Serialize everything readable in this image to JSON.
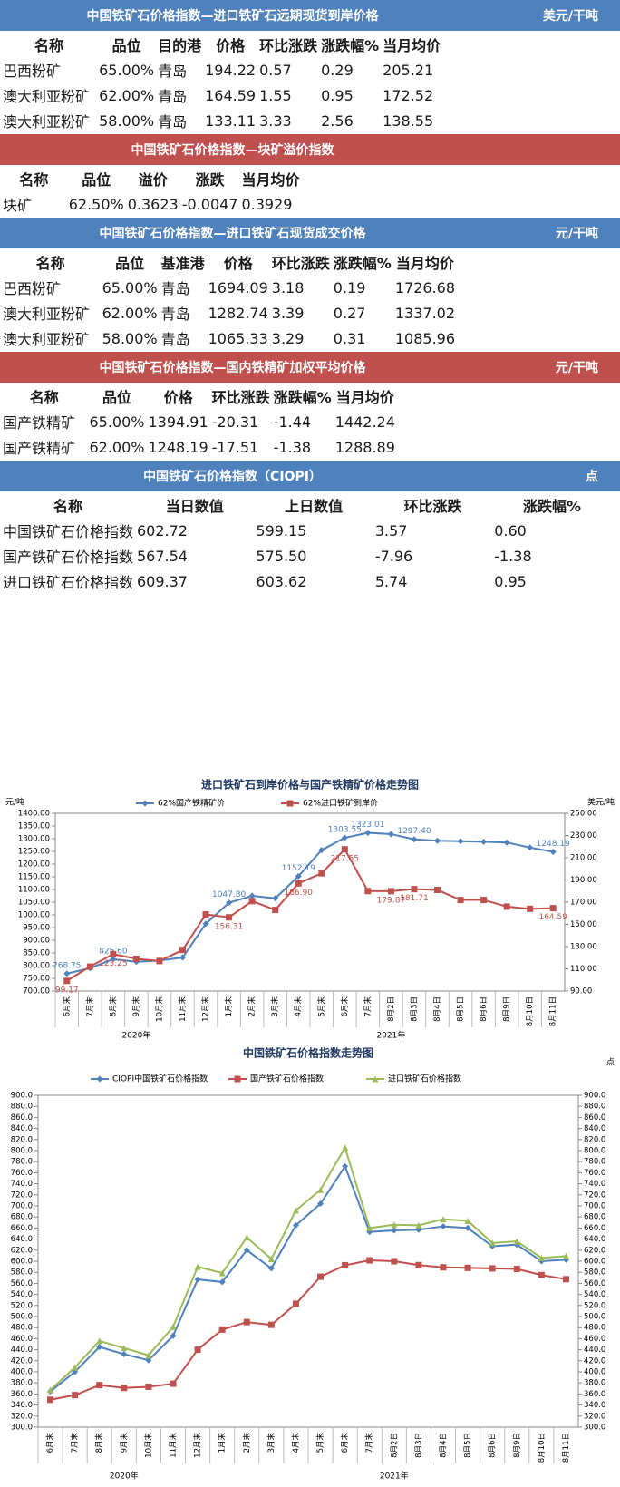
{
  "tables": [
    {
      "title": "中国铁矿石价格指数—进口铁矿石远期现货到岸价格",
      "unit": "美元/干吨",
      "color": "#4f81bd",
      "headers": [
        "名称",
        "品位",
        "目的港",
        "价格",
        "环比涨跌",
        "涨跌幅%",
        "当月均价"
      ],
      "rows": [
        [
          "巴西粉矿",
          "65.00%",
          "青岛",
          "194.22",
          "0.57",
          "0.29",
          "205.21"
        ],
        [
          "澳大利亚粉矿",
          "62.00%",
          "青岛",
          "164.59",
          "1.55",
          "0.95",
          "172.52"
        ],
        [
          "澳大利亚粉矿",
          "58.00%",
          "青岛",
          "133.11",
          "3.33",
          "2.56",
          "138.55"
        ]
      ]
    },
    {
      "title": "中国铁矿石价格指数—块矿溢价指数",
      "color": "#c0504d",
      "headers": [
        "名称",
        "品位",
        "溢价",
        "涨跌",
        "当月均价"
      ],
      "rows": [
        [
          "块矿",
          "62.50%",
          "0.3623",
          "-0.0047",
          "0.3929"
        ]
      ]
    },
    {
      "title": "中国铁矿石价格指数—进口铁矿石现货成交价格",
      "unit": "元/干吨",
      "color": "#4f81bd",
      "headers": [
        "名称",
        "品位",
        "基准港",
        "价格",
        "环比涨跌",
        "涨跌幅%",
        "当月均价"
      ],
      "rows": [
        [
          "巴西粉矿",
          "65.00%",
          "青岛",
          "1694.09",
          "3.18",
          "0.19",
          "1726.68"
        ],
        [
          "澳大利亚粉矿",
          "62.00%",
          "青岛",
          "1282.74",
          "3.39",
          "0.27",
          "1337.02"
        ],
        [
          "澳大利亚粉矿",
          "58.00%",
          "青岛",
          "1065.33",
          "3.29",
          "0.31",
          "1085.96"
        ]
      ]
    },
    {
      "title": "中国铁矿石价格指数—国内铁精矿加权平均价格",
      "unit": "元/干吨",
      "color": "#c0504d",
      "headers": [
        "名称",
        "品位",
        "价格",
        "环比涨跌",
        "涨跌幅%",
        "当月均价"
      ],
      "rows": [
        [
          "国产铁精矿",
          "65.00%",
          "1394.91",
          "-20.31",
          "-1.44",
          "1442.24"
        ],
        [
          "国产铁精矿",
          "62.00%",
          "1248.19",
          "-17.51",
          "-1.38",
          "1288.89"
        ]
      ]
    },
    {
      "title": "中国铁矿石价格指数（CIOPI）",
      "unit": "点",
      "color": "#4f81bd",
      "headers": [
        "名称",
        "当日数值",
        "上日数值",
        "环比涨跌",
        "涨跌幅%"
      ],
      "rows": [
        [
          "中国铁矿石价格指数",
          "602.72",
          "599.15",
          "3.57",
          "0.60"
        ],
        [
          "国产铁矿石价格指数",
          "567.54",
          "575.50",
          "-7.96",
          "-1.38"
        ],
        [
          "进口铁矿石价格指数",
          "609.37",
          "603.62",
          "5.74",
          "0.95"
        ]
      ]
    }
  ],
  "chart_data": [
    {
      "type": "line",
      "title": "进口铁矿石到岸价格与国产铁精矿价格走势图",
      "y_label": "元/吨",
      "y2_label": "美元/吨",
      "category_groups": [
        {
          "label": "2020年",
          "categories": [
            "6月末",
            "7月末",
            "8月末",
            "9月末",
            "10月末",
            "11月末",
            "12月末"
          ]
        },
        {
          "label": "2021年",
          "categories": [
            "1月末",
            "2月末",
            "3月末",
            "4月末",
            "5月末",
            "6月末",
            "7月末",
            "8月2日",
            "8月3日",
            "8月4日",
            "8月5日",
            "8月6日",
            "8月9日",
            "8月10日",
            "8月11日"
          ]
        }
      ],
      "series": [
        {
          "name": "62%国产铁精矿价",
          "color": "#4f81bd",
          "marker": "diamond",
          "label_side": "above",
          "values": [
            768.75,
            790,
            825.6,
            815,
            820,
            832,
            965,
            1047.8,
            1075,
            1065,
            1152.19,
            1255,
            1303.55,
            1323.01,
            1318,
            1297.4,
            1292,
            1290,
            1288,
            1285,
            1265,
            1248.19
          ],
          "value_labels": [
            "768.75",
            null,
            "825.60",
            null,
            null,
            null,
            null,
            "1047.80",
            null,
            null,
            "1152.19",
            null,
            "1303.55",
            "1323.01",
            null,
            "1297.40",
            null,
            null,
            null,
            null,
            null,
            "1248.19"
          ]
        },
        {
          "name": "62%进口铁矿到岸价",
          "color": "#c0504d",
          "marker": "square",
          "label_side": "below",
          "axis": "y2",
          "values": [
            99.17,
            112,
            123.25,
            119,
            117,
            127,
            159,
            156.31,
            171,
            163,
            186.9,
            196,
            217.55,
            180,
            179.87,
            181.71,
            181,
            172,
            172,
            166,
            164,
            164.59
          ],
          "value_labels": [
            "99.17",
            null,
            "123.25",
            null,
            null,
            null,
            null,
            "156.31",
            null,
            null,
            "186.90",
            null,
            "217.55",
            null,
            "179.87",
            "181.71",
            null,
            null,
            null,
            null,
            null,
            "164.59"
          ]
        }
      ],
      "ylim": [
        700,
        1400
      ],
      "yticks": [
        {
          "value": 700,
          "label": "700.00"
        },
        {
          "value": 750,
          "label": "750.00"
        },
        {
          "value": 800,
          "label": "800.00"
        },
        {
          "value": 850,
          "label": "850.00"
        },
        {
          "value": 900,
          "label": "900.00"
        },
        {
          "value": 950,
          "label": "950.00"
        },
        {
          "value": 1000,
          "label": "1000.00"
        },
        {
          "value": 1050,
          "label": "1050.00"
        },
        {
          "value": 1100,
          "label": "1100.00"
        },
        {
          "value": 1150,
          "label": "1150.00"
        },
        {
          "value": 1200,
          "label": "1200.00"
        },
        {
          "value": 1250,
          "label": "1250.00"
        },
        {
          "value": 1300,
          "label": "1300.00"
        },
        {
          "value": 1350,
          "label": "1350.00"
        },
        {
          "value": 1400,
          "label": "1400.00"
        }
      ],
      "y2lim": [
        90,
        250
      ],
      "y2ticks": [
        {
          "value": 90,
          "label": "90.00"
        },
        {
          "value": 110,
          "label": "110.00"
        },
        {
          "value": 130,
          "label": "130.00"
        },
        {
          "value": 150,
          "label": "150.00"
        },
        {
          "value": 170,
          "label": "170.00"
        },
        {
          "value": 190,
          "label": "190.00"
        },
        {
          "value": 210,
          "label": "210.00"
        },
        {
          "value": 230,
          "label": "230.00"
        },
        {
          "value": 250,
          "label": "250.00"
        }
      ]
    },
    {
      "type": "line",
      "title": "中国铁矿石价格指数走势图",
      "y2_label": "点",
      "category_groups": [
        {
          "label": "2020年",
          "categories": [
            "6月末",
            "7月末",
            "8月末",
            "9月末",
            "10月末",
            "11月末",
            "12月末"
          ]
        },
        {
          "label": "2021年",
          "categories": [
            "1月末",
            "2月末",
            "3月末",
            "4月末",
            "5月末",
            "6月末",
            "7月末",
            "8月2日",
            "8月3日",
            "8月4日",
            "8月5日",
            "8月6日",
            "8月9日",
            "8月10日",
            "8月11日"
          ]
        }
      ],
      "series": [
        {
          "name": "CIOPI中国铁矿石价格指数",
          "color": "#4f81bd",
          "marker": "diamond",
          "label_side": "below",
          "values": [
            364.49,
            400,
            445,
            432,
            421,
            465.15,
            567,
            562.45,
            620,
            587,
            665,
            704.04,
            771.62,
            653,
            655.69,
            657,
            663,
            660,
            627,
            630,
            600,
            602.72
          ],
          "value_labels": [
            null,
            null,
            null,
            null,
            null,
            null,
            null,
            null,
            null,
            null,
            null,
            null,
            null,
            null,
            null,
            null,
            null,
            null,
            null,
            null,
            null,
            null
          ]
        },
        {
          "name": "国产铁矿石价格指数",
          "color": "#c0504d",
          "marker": "square",
          "label_side": "above",
          "values": [
            349.55,
            358,
            376,
            371,
            373,
            378.56,
            440,
            476.42,
            490,
            485,
            523,
            572,
            592.71,
            601.56,
            600,
            593,
            589,
            588,
            587,
            586,
            575,
            567.54
          ],
          "value_labels": [
            null,
            null,
            null,
            null,
            null,
            null,
            null,
            null,
            null,
            null,
            null,
            null,
            null,
            null,
            null,
            null,
            null,
            null,
            null,
            null,
            null,
            null
          ]
        },
        {
          "name": "进口铁矿石价格指数",
          "color": "#9bbb59",
          "marker": "triangle",
          "label_side": "above",
          "values": [
            367.18,
            408,
            456,
            443,
            430,
            481.53,
            590,
            578.77,
            643,
            604,
            692,
            729.07,
            805.44,
            660,
            665.92,
            665,
            676,
            673,
            633,
            636,
            606,
            609.37
          ],
          "value_labels": [
            null,
            null,
            null,
            null,
            null,
            null,
            null,
            null,
            null,
            null,
            null,
            null,
            null,
            null,
            null,
            null,
            null,
            null,
            null,
            null,
            null,
            null
          ]
        }
      ],
      "ylim": [
        300,
        900
      ],
      "yticks": [
        {
          "value": 300,
          "label": "300.0"
        },
        {
          "value": 320,
          "label": "320.0"
        },
        {
          "value": 340,
          "label": "340.0"
        },
        {
          "value": 360,
          "label": "360.0"
        },
        {
          "value": 380,
          "label": "380.0"
        },
        {
          "value": 400,
          "label": "400.0"
        },
        {
          "value": 420,
          "label": "420.0"
        },
        {
          "value": 440,
          "label": "440.0"
        },
        {
          "value": 460,
          "label": "460.0"
        },
        {
          "value": 480,
          "label": "480.0"
        },
        {
          "value": 500,
          "label": "500.0"
        },
        {
          "value": 520,
          "label": "520.0"
        },
        {
          "value": 540,
          "label": "540.0"
        },
        {
          "value": 560,
          "label": "560.0"
        },
        {
          "value": 580,
          "label": "580.0"
        },
        {
          "value": 600,
          "label": "600.0"
        },
        {
          "value": 620,
          "label": "620.0"
        },
        {
          "value": 640,
          "label": "640.0"
        },
        {
          "value": 660,
          "label": "660.0"
        },
        {
          "value": 680,
          "label": "680.0"
        },
        {
          "value": 700,
          "label": "700.0"
        },
        {
          "value": 720,
          "label": "720.0"
        },
        {
          "value": 740,
          "label": "740.0"
        },
        {
          "value": 760,
          "label": "760.0"
        },
        {
          "value": 780,
          "label": "780.0"
        },
        {
          "value": 800,
          "label": "800.0"
        },
        {
          "value": 820,
          "label": "820.0"
        },
        {
          "value": 840,
          "label": "840.0"
        },
        {
          "value": 860,
          "label": "860.0"
        },
        {
          "value": 880,
          "label": "880.0"
        },
        {
          "value": 900,
          "label": "900.0"
        }
      ],
      "y2lim": [
        300,
        900
      ],
      "y2ticks": [
        {
          "value": 300,
          "label": "300.0"
        },
        {
          "value": 320,
          "label": "320.0"
        },
        {
          "value": 340,
          "label": "340.0"
        },
        {
          "value": 360,
          "label": "360.0"
        },
        {
          "value": 380,
          "label": "380.0"
        },
        {
          "value": 400,
          "label": "400.0"
        },
        {
          "value": 420,
          "label": "420.0"
        },
        {
          "value": 440,
          "label": "440.0"
        },
        {
          "value": 460,
          "label": "460.0"
        },
        {
          "value": 480,
          "label": "480.0"
        },
        {
          "value": 500,
          "label": "500.0"
        },
        {
          "value": 520,
          "label": "520.0"
        },
        {
          "value": 540,
          "label": "540.0"
        },
        {
          "value": 560,
          "label": "560.0"
        },
        {
          "value": 580,
          "label": "580.0"
        },
        {
          "value": 600,
          "label": "600.0"
        },
        {
          "value": 620,
          "label": "620.0"
        },
        {
          "value": 640,
          "label": "640.0"
        },
        {
          "value": 660,
          "label": "660.0"
        },
        {
          "value": 680,
          "label": "680.0"
        },
        {
          "value": 700,
          "label": "700.0"
        },
        {
          "value": 720,
          "label": "720.0"
        },
        {
          "value": 740,
          "label": "740.0"
        },
        {
          "value": 760,
          "label": "760.0"
        },
        {
          "value": 780,
          "label": "780.0"
        },
        {
          "value": 800,
          "label": "800.0"
        },
        {
          "value": 820,
          "label": "820.0"
        },
        {
          "value": 840,
          "label": "840.0"
        },
        {
          "value": 860,
          "label": "860.0"
        },
        {
          "value": 880,
          "label": "880.0"
        },
        {
          "value": 900,
          "label": "900.0"
        }
      ]
    }
  ]
}
